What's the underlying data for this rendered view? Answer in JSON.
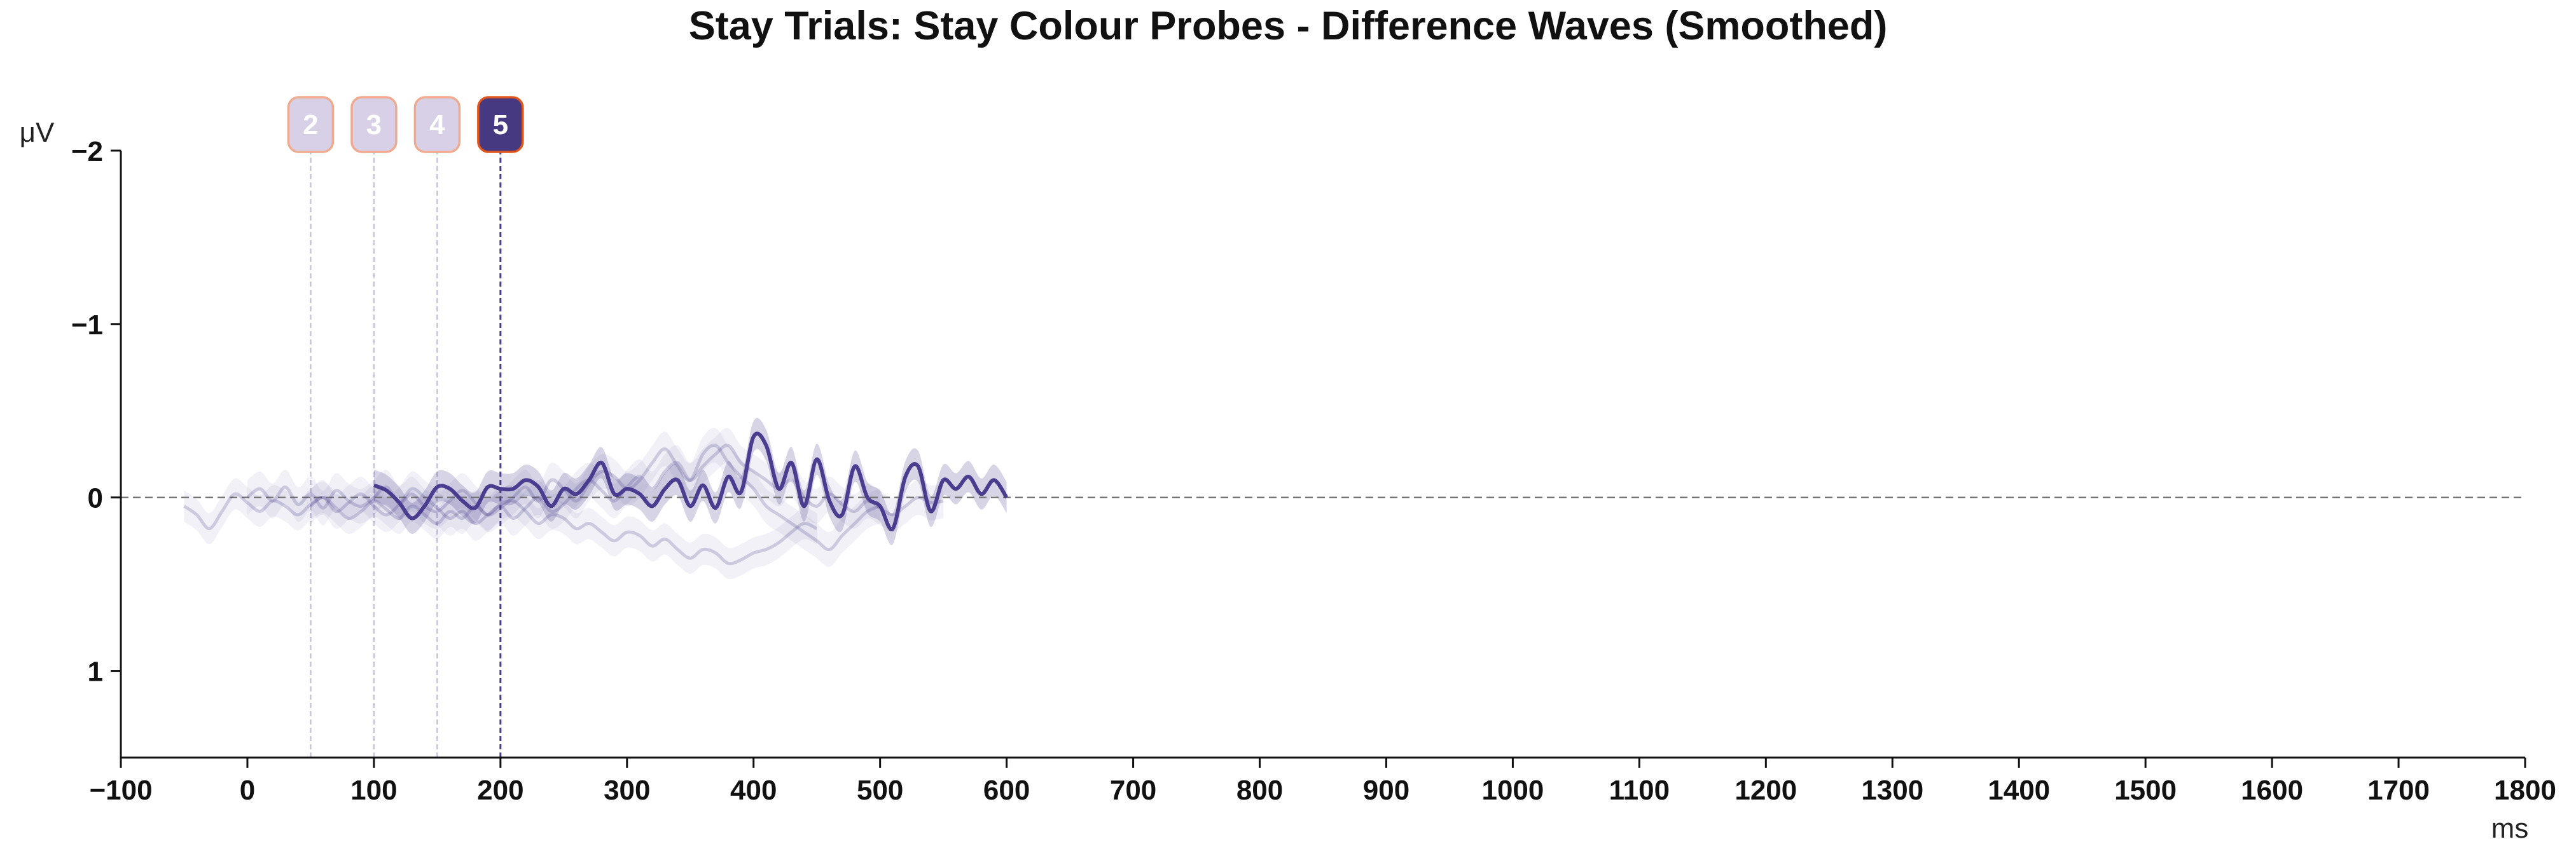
{
  "chart_data": {
    "type": "line",
    "title": "Stay Trials: Stay Colour Probes - Difference Waves (Smoothed)",
    "xlabel": "ms",
    "ylabel": "μV",
    "xlim": [
      -100,
      1800
    ],
    "ylim": [
      1.5,
      -2
    ],
    "y_inverted": true,
    "grid": false,
    "x_ticks": [
      -100,
      0,
      100,
      200,
      300,
      400,
      500,
      600,
      700,
      800,
      900,
      1000,
      1100,
      1200,
      1300,
      1400,
      1500,
      1600,
      1700,
      1800
    ],
    "x_tick_labels": [
      "−100",
      "0",
      "100",
      "200",
      "300",
      "400",
      "500",
      "600",
      "700",
      "800",
      "900",
      "1000",
      "1100",
      "1200",
      "1300",
      "1400",
      "1500",
      "1600",
      "1700",
      "1800"
    ],
    "y_ticks": [
      -2,
      -1,
      0,
      1
    ],
    "y_tick_labels": [
      "−2",
      "−1",
      "0",
      "1"
    ],
    "zero_line": {
      "y": 0,
      "style": "dashed",
      "color": "#777777"
    },
    "series_color": "#4a3d8f",
    "markers": [
      {
        "label": "2",
        "x": 50,
        "active": false
      },
      {
        "label": "3",
        "x": 100,
        "active": false
      },
      {
        "label": "4",
        "x": 150,
        "active": false
      },
      {
        "label": "5",
        "x": 200,
        "active": true
      }
    ],
    "series": [
      {
        "active": false,
        "x": [
          -50,
          -40,
          -30,
          -20,
          -10,
          0,
          10,
          20,
          30,
          40,
          50,
          60,
          70,
          80,
          90,
          100,
          110,
          120,
          130,
          140,
          150,
          160,
          170,
          180,
          190,
          200,
          210,
          220,
          230,
          240,
          250,
          260,
          270,
          280,
          290,
          300,
          310,
          320,
          330,
          340,
          350,
          360,
          370,
          380,
          390,
          400,
          410,
          420,
          430,
          440,
          450
        ],
        "values": [
          0.05,
          0.1,
          0.18,
          0.08,
          -0.02,
          0.03,
          0.08,
          0.02,
          0.05,
          0.1,
          0.04,
          0.0,
          0.06,
          0.12,
          0.08,
          0.02,
          0.07,
          0.12,
          0.05,
          0.1,
          0.15,
          0.08,
          0.12,
          0.05,
          0.1,
          0.04,
          0.02,
          0.08,
          0.15,
          0.1,
          0.12,
          0.18,
          0.15,
          0.2,
          0.25,
          0.2,
          0.22,
          0.28,
          0.24,
          0.3,
          0.35,
          0.3,
          0.32,
          0.38,
          0.36,
          0.32,
          0.3,
          0.26,
          0.2,
          0.15,
          0.18
        ],
        "ci": 0.09
      },
      {
        "active": false,
        "x": [
          0,
          10,
          20,
          30,
          40,
          50,
          60,
          70,
          80,
          90,
          100,
          110,
          120,
          130,
          140,
          150,
          160,
          170,
          180,
          190,
          200,
          210,
          220,
          230,
          240,
          250,
          260,
          270,
          280,
          290,
          300,
          310,
          320,
          330,
          340,
          350,
          360,
          370,
          380,
          390,
          400,
          410,
          420,
          430,
          440,
          450,
          460,
          470,
          480,
          490,
          500
        ],
        "values": [
          0.0,
          -0.05,
          0.02,
          -0.06,
          0.04,
          -0.02,
          0.06,
          -0.04,
          0.02,
          0.05,
          0.0,
          -0.06,
          0.03,
          -0.02,
          0.05,
          0.08,
          0.02,
          -0.04,
          0.03,
          0.1,
          0.06,
          0.0,
          -0.06,
          0.02,
          -0.1,
          -0.05,
          0.02,
          -0.08,
          -0.15,
          -0.12,
          -0.05,
          -0.1,
          -0.2,
          -0.28,
          -0.18,
          -0.1,
          -0.25,
          -0.3,
          -0.2,
          -0.12,
          -0.05,
          0.05,
          0.1,
          0.15,
          0.2,
          0.25,
          0.3,
          0.22,
          0.15,
          0.08,
          0.05
        ],
        "ci": 0.1
      },
      {
        "active": false,
        "x": [
          50,
          60,
          70,
          80,
          90,
          100,
          110,
          120,
          130,
          140,
          150,
          160,
          170,
          180,
          190,
          200,
          210,
          220,
          230,
          240,
          250,
          260,
          270,
          280,
          290,
          300,
          310,
          320,
          330,
          340,
          350,
          360,
          370,
          380,
          390,
          400,
          410,
          420,
          430,
          440,
          450,
          460,
          470,
          480,
          490,
          500,
          510,
          520,
          530,
          540,
          550
        ],
        "values": [
          0.05,
          0.0,
          0.08,
          0.03,
          -0.02,
          0.05,
          0.1,
          0.04,
          -0.05,
          0.0,
          0.06,
          0.12,
          0.08,
          0.15,
          0.1,
          0.05,
          0.12,
          0.06,
          0.0,
          0.08,
          0.04,
          -0.05,
          -0.1,
          -0.04,
          0.02,
          -0.06,
          -0.12,
          -0.05,
          -0.15,
          -0.2,
          -0.1,
          -0.18,
          -0.25,
          -0.3,
          -0.2,
          -0.15,
          -0.1,
          -0.05,
          -0.1,
          0.0,
          0.05,
          -0.02,
          0.04,
          0.08,
          0.02,
          0.06,
          0.1,
          0.05,
          0.0,
          0.03,
          0.02
        ],
        "ci": 0.1
      },
      {
        "active": true,
        "x": [
          100,
          110,
          120,
          130,
          140,
          150,
          160,
          170,
          180,
          190,
          200,
          210,
          220,
          230,
          240,
          250,
          260,
          270,
          280,
          290,
          300,
          310,
          320,
          330,
          340,
          350,
          360,
          370,
          380,
          390,
          400,
          410,
          420,
          430,
          440,
          450,
          460,
          470,
          480,
          490,
          500,
          510,
          520,
          530,
          540,
          550,
          560,
          570,
          580,
          590,
          600
        ],
        "values": [
          -0.07,
          -0.04,
          0.03,
          0.12,
          0.05,
          -0.06,
          -0.05,
          0.02,
          0.06,
          -0.06,
          -0.05,
          -0.05,
          -0.1,
          -0.06,
          0.05,
          -0.05,
          -0.02,
          -0.1,
          -0.2,
          -0.02,
          -0.05,
          -0.02,
          0.05,
          -0.05,
          -0.1,
          0.05,
          -0.07,
          0.06,
          -0.12,
          -0.03,
          -0.35,
          -0.3,
          -0.05,
          -0.2,
          0.05,
          -0.22,
          0.02,
          0.1,
          -0.18,
          0.0,
          0.05,
          0.18,
          -0.12,
          -0.18,
          0.08,
          -0.1,
          -0.05,
          -0.12,
          -0.02,
          -0.1,
          0.0
        ],
        "ci": 0.09
      }
    ]
  }
}
